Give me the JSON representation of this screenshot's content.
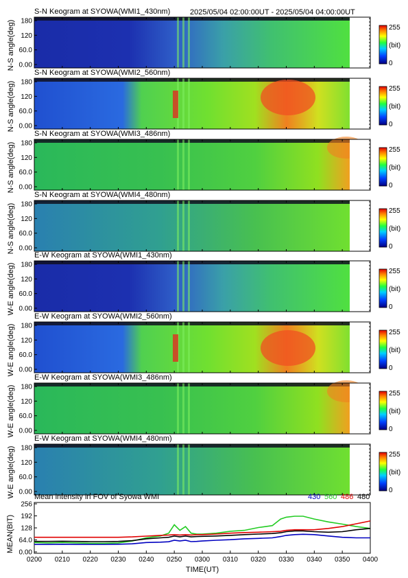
{
  "header": {
    "time_range": "2025/05/04 02:00:00UT - 2025/05/04 04:00:00UT"
  },
  "colorbar": {
    "max_label": "255",
    "unit_label": "(bit)",
    "min_label": "0"
  },
  "keogram_yticks": [
    "180",
    "120",
    "60.0",
    "0.00"
  ],
  "panels": [
    {
      "title": "S-N Keogram at SYOWA(WMI1_430nm)",
      "ylabel": "N-S angle(deg)",
      "wl": "430",
      "dir": "NS"
    },
    {
      "title": "S-N Keogram at SYOWA(WMI2_560nm)",
      "ylabel": "N-S angle(deg)",
      "wl": "560",
      "dir": "NS"
    },
    {
      "title": "S-N Keogram at SYOWA(WMI3_486nm)",
      "ylabel": "N-S angle(deg)",
      "wl": "486",
      "dir": "NS"
    },
    {
      "title": "S-N Keogram at SYOWA(WMI4_480nm)",
      "ylabel": "N-S angle(deg)",
      "wl": "480",
      "dir": "NS"
    },
    {
      "title": "E-W Keogram at SYOWA(WMI1_430nm)",
      "ylabel": "W-E angle(deg)",
      "wl": "430",
      "dir": "EW"
    },
    {
      "title": "E-W Keogram at SYOWA(WMI2_560nm)",
      "ylabel": "W-E angle(deg)",
      "wl": "560",
      "dir": "EW"
    },
    {
      "title": "E-W Keogram at SYOWA(WMI3_486nm)",
      "ylabel": "W-E angle(deg)",
      "wl": "486",
      "dir": "EW"
    },
    {
      "title": "E-W Keogram at SYOWA(WMI4_480nm)",
      "ylabel": "W-E angle(deg)",
      "wl": "480",
      "dir": "EW"
    }
  ],
  "chart_data": {
    "type": "line",
    "title": "Mean intensity in FOV of Syowa WMI",
    "xlabel": "TIME(UT)",
    "ylabel": "MEAN(BIT)",
    "x_ticks": [
      "0200",
      "0210",
      "0220",
      "0230",
      "0240",
      "0250",
      "0300",
      "0310",
      "0320",
      "0330",
      "0340",
      "0350",
      "0400"
    ],
    "y_ticks": [
      "256",
      "192",
      "128",
      "64.0",
      "0.00"
    ],
    "xlim": [
      0,
      120
    ],
    "ylim": [
      0,
      256
    ],
    "x": [
      0,
      5,
      10,
      15,
      20,
      25,
      30,
      35,
      40,
      45,
      48,
      50,
      52,
      54,
      56,
      58,
      60,
      65,
      70,
      75,
      80,
      85,
      88,
      90,
      93,
      96,
      100,
      105,
      110,
      115,
      120
    ],
    "series": [
      {
        "name": "430",
        "color": "#0000c0",
        "values": [
          40,
          40,
          41,
          40,
          40,
          40,
          41,
          43,
          50,
          52,
          54,
          62,
          58,
          62,
          55,
          56,
          58,
          62,
          65,
          70,
          72,
          75,
          82,
          88,
          92,
          94,
          92,
          85,
          78,
          75,
          75
        ]
      },
      {
        "name": "560",
        "color": "#22cc22",
        "values": [
          50,
          48,
          50,
          48,
          46,
          46,
          48,
          58,
          75,
          85,
          100,
          145,
          115,
          135,
          100,
          95,
          95,
          100,
          110,
          115,
          130,
          140,
          175,
          185,
          190,
          190,
          175,
          160,
          148,
          135,
          125
        ]
      },
      {
        "name": "486",
        "color": "#e00000",
        "values": [
          78,
          78,
          78,
          78,
          78,
          78,
          78,
          80,
          84,
          88,
          90,
          92,
          90,
          92,
          90,
          92,
          92,
          95,
          100,
          103,
          105,
          108,
          110,
          115,
          118,
          118,
          118,
          125,
          135,
          150,
          165
        ]
      },
      {
        "name": "480",
        "color": "#000000",
        "values": [
          56,
          56,
          57,
          56,
          55,
          55,
          56,
          60,
          70,
          75,
          78,
          85,
          80,
          85,
          80,
          82,
          83,
          85,
          88,
          92,
          95,
          98,
          102,
          108,
          112,
          112,
          108,
          105,
          108,
          118,
          125
        ]
      }
    ]
  }
}
